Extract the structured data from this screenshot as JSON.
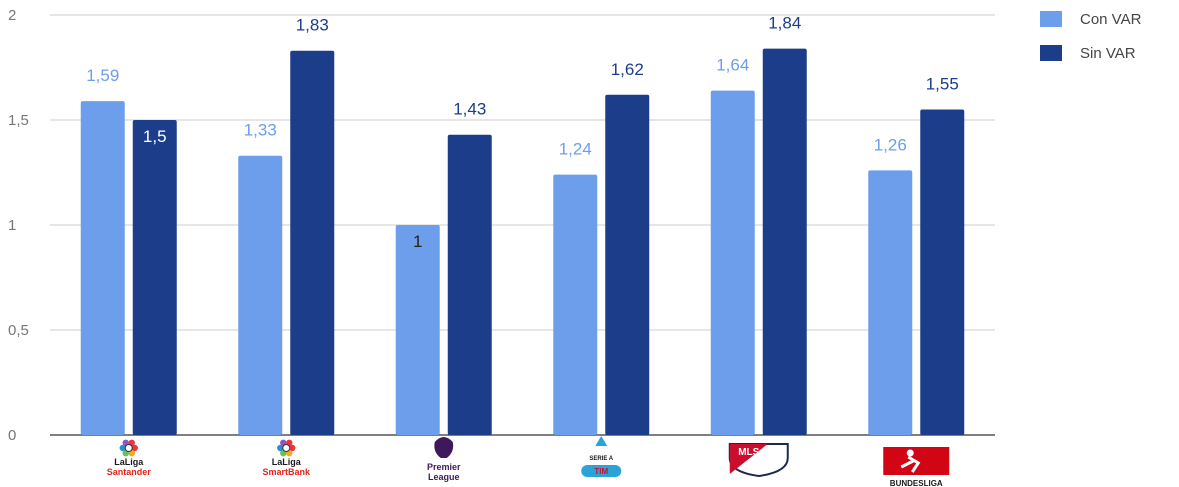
{
  "chart_data": {
    "type": "bar",
    "categories": [
      "LaLiga Santander",
      "LaLiga SmartBank",
      "Premier League",
      "Serie A TIM",
      "MLS",
      "Bundesliga"
    ],
    "series": [
      {
        "name": "Con VAR",
        "color": "#6d9eeb",
        "values": [
          1.59,
          1.33,
          1,
          1.24,
          1.64,
          1.26
        ],
        "labels": [
          "1,59",
          "1,33",
          "1",
          "1,24",
          "1,64",
          "1,26"
        ]
      },
      {
        "name": "Sin VAR",
        "color": "#1c3e8a",
        "values": [
          1.5,
          1.83,
          1.43,
          1.62,
          1.84,
          1.55
        ],
        "labels": [
          "1,5",
          "1,83",
          "1,43",
          "1,62",
          "1,84",
          "1,55"
        ]
      }
    ],
    "y_ticks": [
      "0",
      "0,5",
      "1",
      "1,5",
      "2"
    ],
    "ylim": [
      0,
      2
    ],
    "legend_position": "top-right",
    "grid": true
  },
  "logos": [
    {
      "name": "laliga-santander-logo",
      "line1": "LaLiga",
      "line2": "Santander",
      "icon": "laliga-ball-icon"
    },
    {
      "name": "laliga-smartbank-logo",
      "line1": "LaLiga",
      "line2": "SmartBank",
      "icon": "laliga-ball-icon"
    },
    {
      "name": "premier-league-logo",
      "line1": "Premier",
      "line2": "League",
      "icon": "lion-icon"
    },
    {
      "name": "serie-a-logo",
      "line1": "SERIE A",
      "line2": "TIM",
      "icon": "serie-a-icon"
    },
    {
      "name": "mls-logo",
      "line1": "MLS",
      "line2": "",
      "icon": "mls-shield-icon"
    },
    {
      "name": "bundesliga-logo",
      "line1": "BUNDESLIGA",
      "line2": "",
      "icon": "bundesliga-player-icon"
    }
  ],
  "legend": [
    {
      "label": "Con VAR",
      "color": "#6d9eeb"
    },
    {
      "label": "Sin VAR",
      "color": "#1c3e8a"
    }
  ]
}
